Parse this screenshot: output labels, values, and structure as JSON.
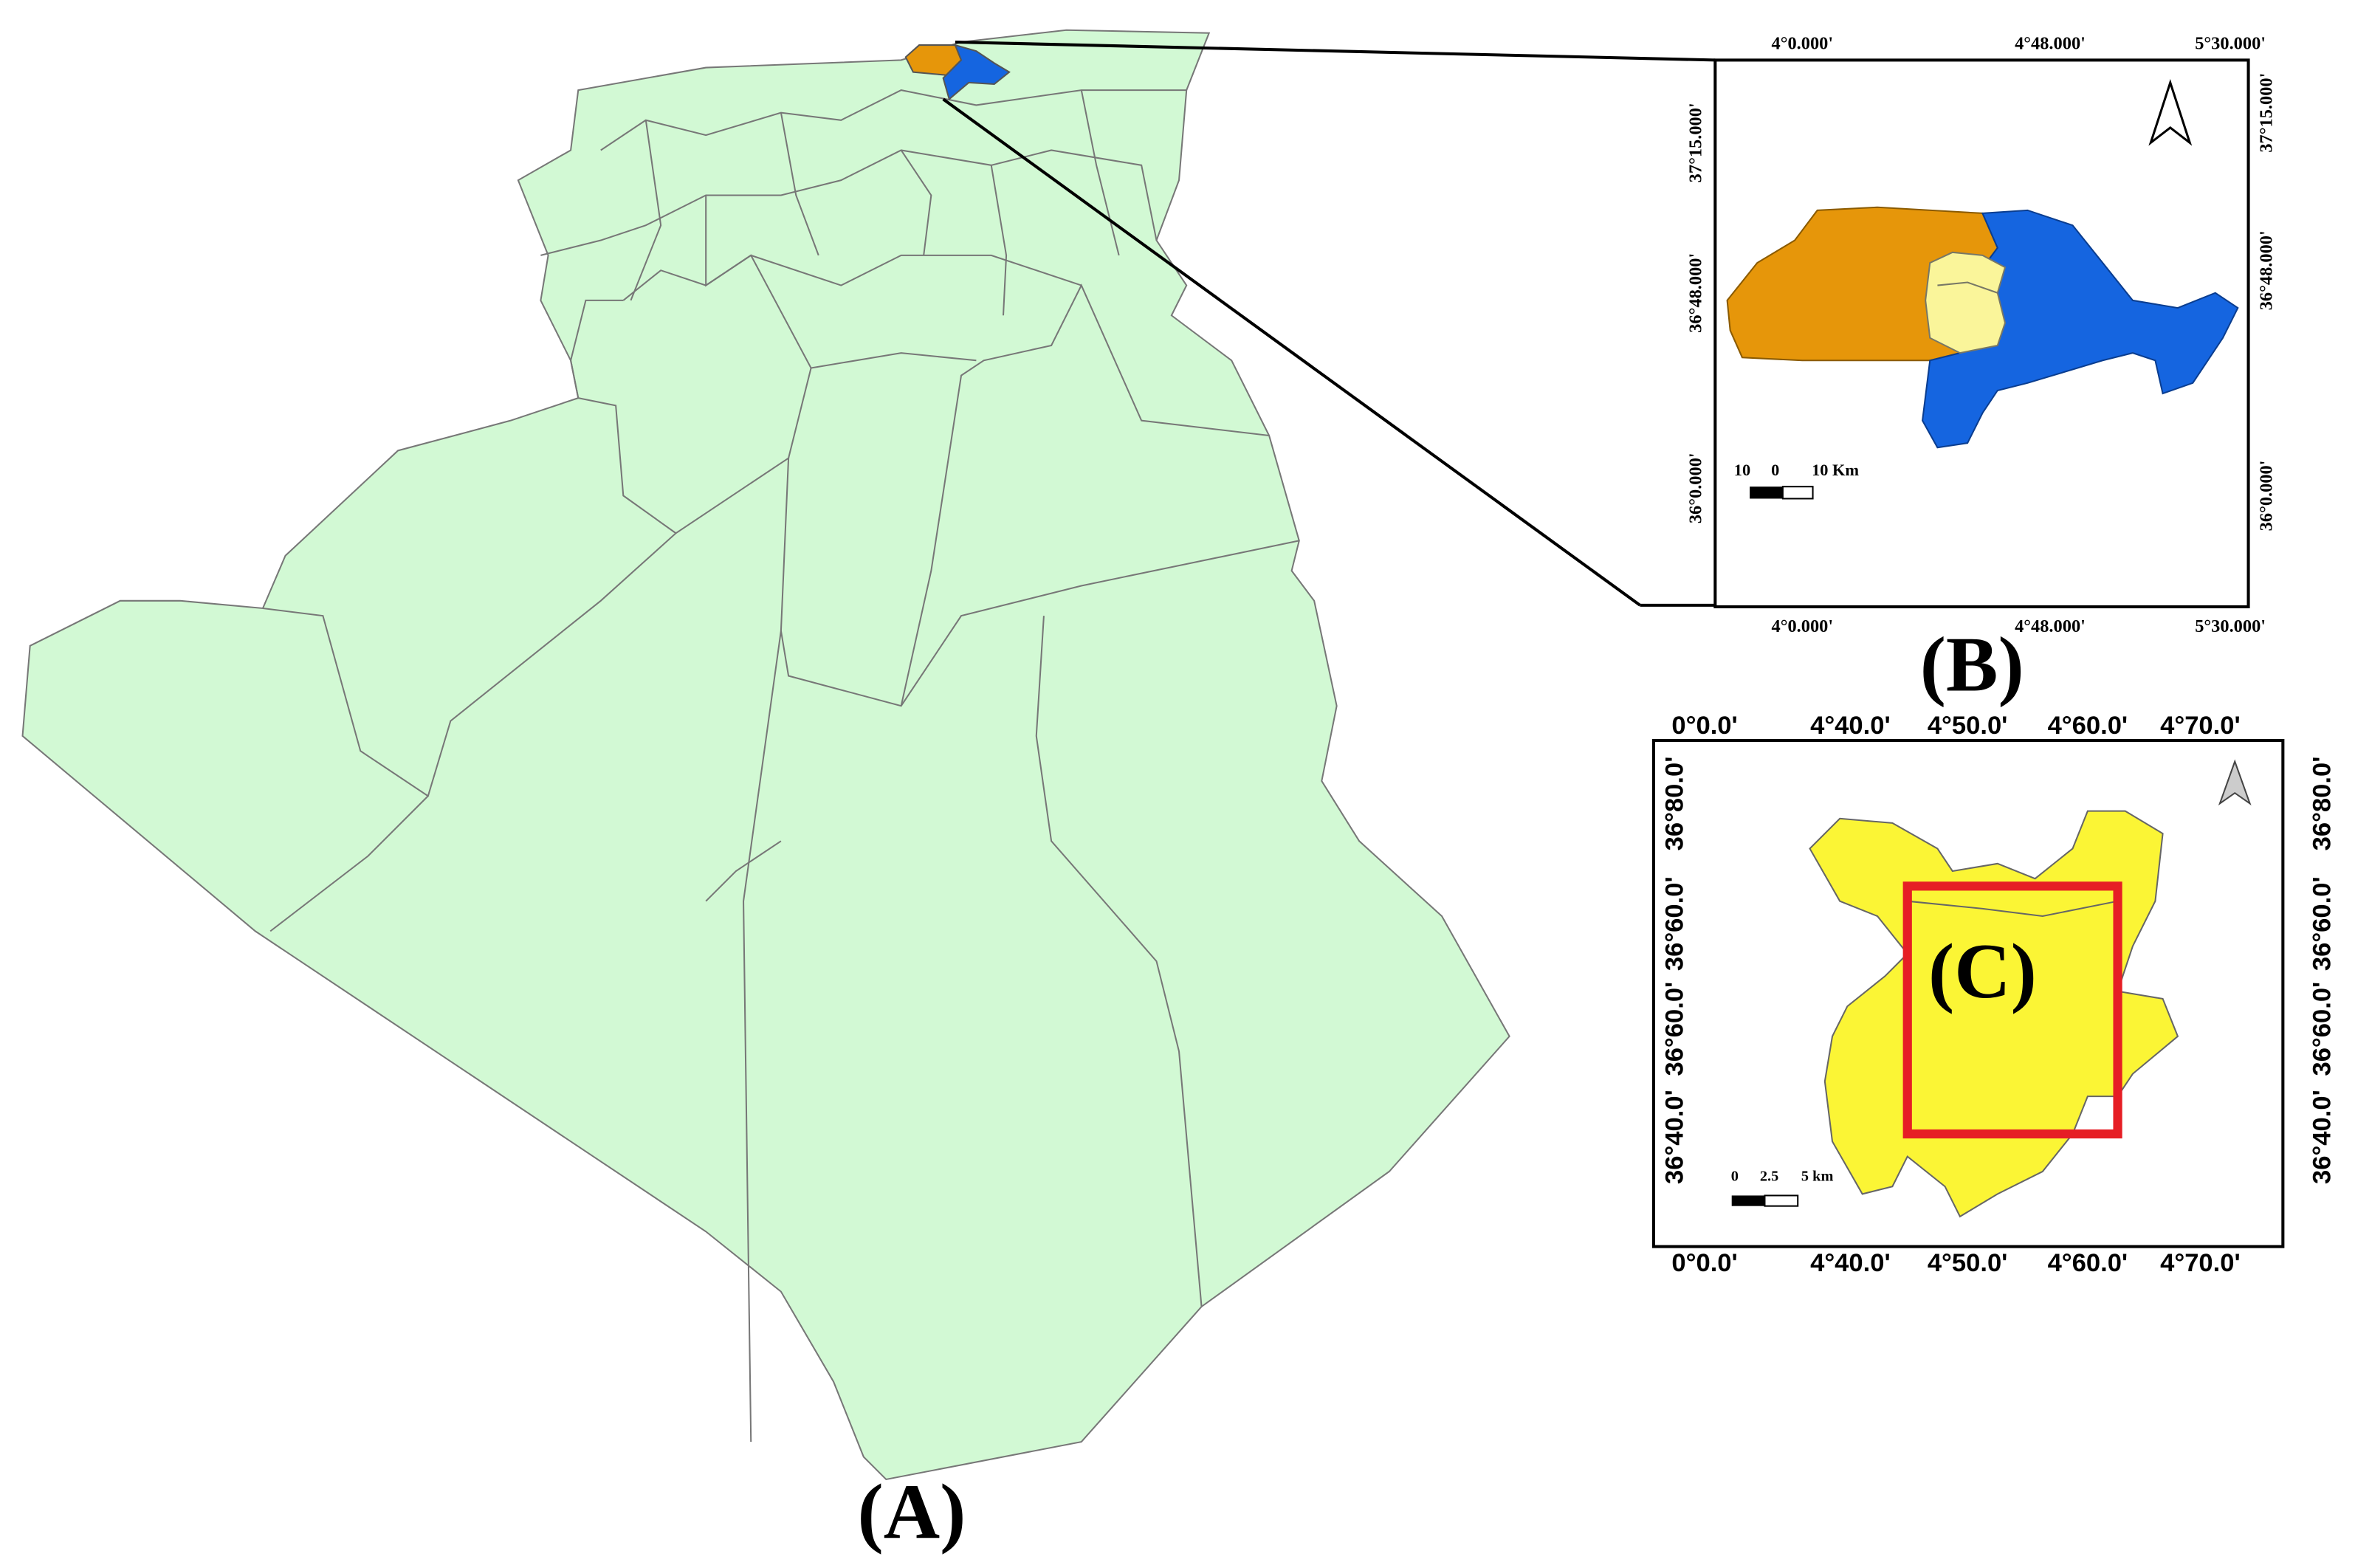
{
  "panel_a": {
    "label": "(A)"
  },
  "panel_b": {
    "label": "(B)",
    "top_labels": [
      "4°0.000'",
      "4°48.000'",
      "5°30.000'"
    ],
    "bottom_labels": [
      "4°0.000'",
      "4°48.000'",
      "5°30.000'"
    ],
    "left_labels": [
      "37°15.000'",
      "36°48.000'",
      "36°0.000'"
    ],
    "right_labels": [
      "37°15.000'",
      "36°48.000'",
      "36°0.000'"
    ],
    "scale_labels": [
      "10",
      "0",
      "10 Km"
    ]
  },
  "panel_c": {
    "label": "(C)",
    "top_labels": [
      "0°0.0'",
      "4°40.0'",
      "4°50.0'",
      "4°60.0'",
      "4°70.0'"
    ],
    "bottom_labels": [
      "0°0.0'",
      "4°40.0'",
      "4°50.0'",
      "4°60.0'",
      "4°70.0'"
    ],
    "left_labels": [
      "36°80.0'",
      "36°60.0'",
      "36°60.0'",
      "36°40.0'"
    ],
    "right_labels": [
      "36°80.0'",
      "36°60.0'",
      "36°60.0'",
      "36°40.0'"
    ],
    "scale_labels": [
      "0",
      "2.5",
      "5 km"
    ]
  }
}
